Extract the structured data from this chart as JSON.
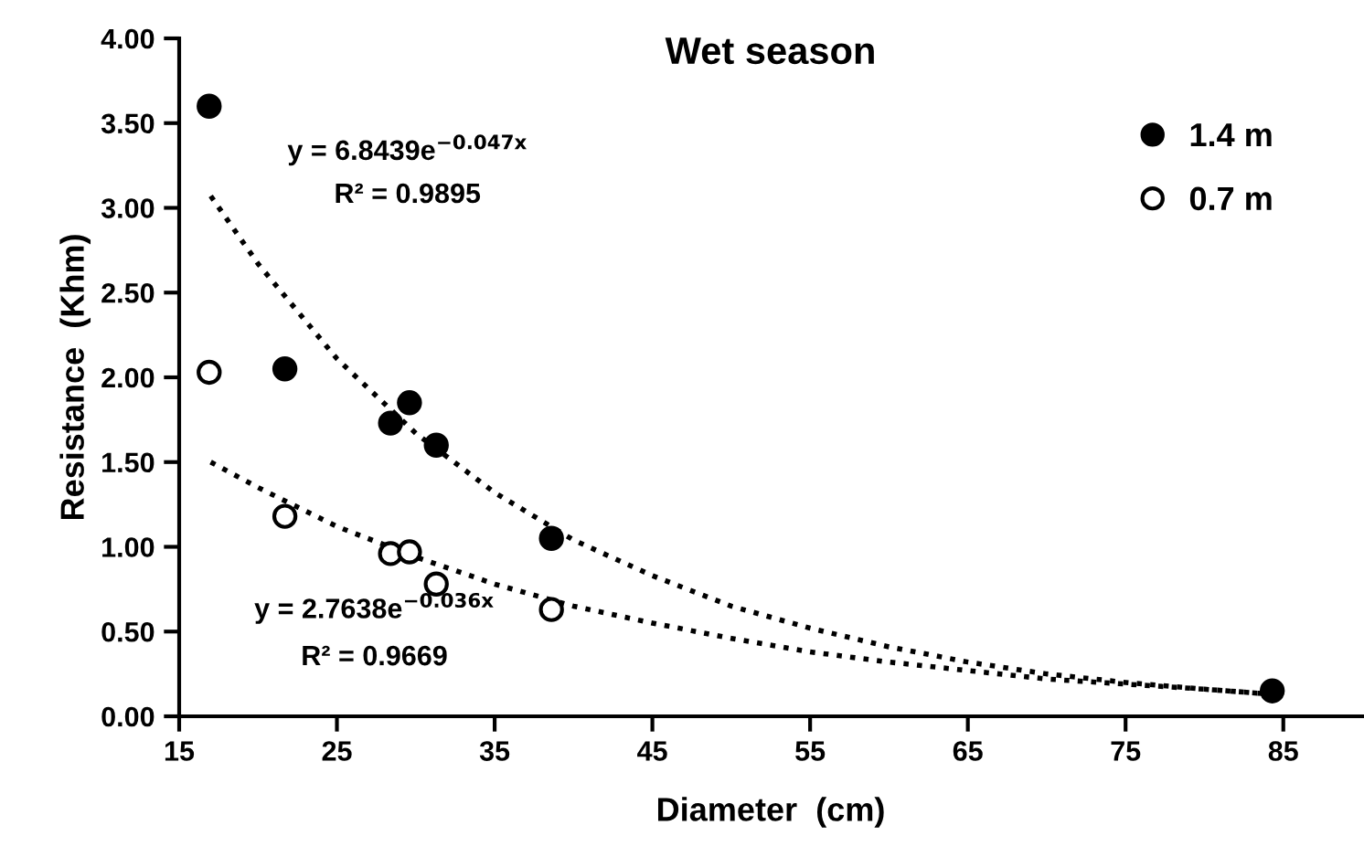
{
  "chart_data": {
    "type": "scatter",
    "title": "Wet season",
    "xlabel": "Diameter  (cm)",
    "ylabel": "Resistance  (Khm)",
    "xlim": [
      15,
      90
    ],
    "xticks": [
      15,
      25,
      35,
      45,
      55,
      65,
      75,
      85
    ],
    "ylim": [
      0,
      4
    ],
    "yticks": [
      {
        "value": 0,
        "label": "0.00"
      },
      {
        "value": 0.5,
        "label": "0.50"
      },
      {
        "value": 1,
        "label": "1.00"
      },
      {
        "value": 1.5,
        "label": "1.50"
      },
      {
        "value": 2,
        "label": "2.00"
      },
      {
        "value": 2.5,
        "label": "2.50"
      },
      {
        "value": 3,
        "label": "3.00"
      },
      {
        "value": 3.5,
        "label": "3.50"
      },
      {
        "value": 4,
        "label": "4.00"
      }
    ],
    "x": [
      16.9,
      21.7,
      28.4,
      29.6,
      31.3,
      38.6,
      84.3
    ],
    "legend": "top right",
    "grid": false,
    "series": [
      {
        "name": "1.4 m",
        "color": "#000000",
        "marker": "circle",
        "values": [
          3.6,
          2.05,
          1.73,
          1.85,
          1.6,
          1.05,
          0.15
        ]
      },
      {
        "name": "0.7 m",
        "color": "#ffffff",
        "marker": "circle",
        "values": [
          2.03,
          1.18,
          0.96,
          0.97,
          0.78,
          0.63,
          null
        ]
      },
      {
        "type": "line",
        "line_style": "dotted",
        "color": "#000000",
        "x": [
          17,
          20,
          25,
          30,
          35,
          40,
          45,
          50,
          55,
          60,
          65,
          70,
          75,
          80,
          84.3
        ],
        "values": [
          3.07,
          2.67,
          2.11,
          1.67,
          1.32,
          1.04,
          0.83,
          0.65,
          0.52,
          0.41,
          0.32,
          0.25,
          0.2,
          0.16,
          0.13
        ]
      },
      {
        "type": "line",
        "line_style": "dotted",
        "color": "#000000",
        "x": [
          17,
          20,
          25,
          30,
          35,
          40,
          45,
          50,
          55,
          60,
          65,
          70,
          75,
          80,
          84.3
        ],
        "values": [
          1.5,
          1.35,
          1.12,
          0.94,
          0.78,
          0.65,
          0.55,
          0.46,
          0.38,
          0.32,
          0.27,
          0.22,
          0.19,
          0.16,
          0.13
        ]
      }
    ],
    "annotations": [
      "y = 6.8439e$^{−0.047x}$",
      "R² = 0.9895",
      "y = 2.7638e$^{−0.036x}$",
      "R² = 0.9669"
    ]
  }
}
